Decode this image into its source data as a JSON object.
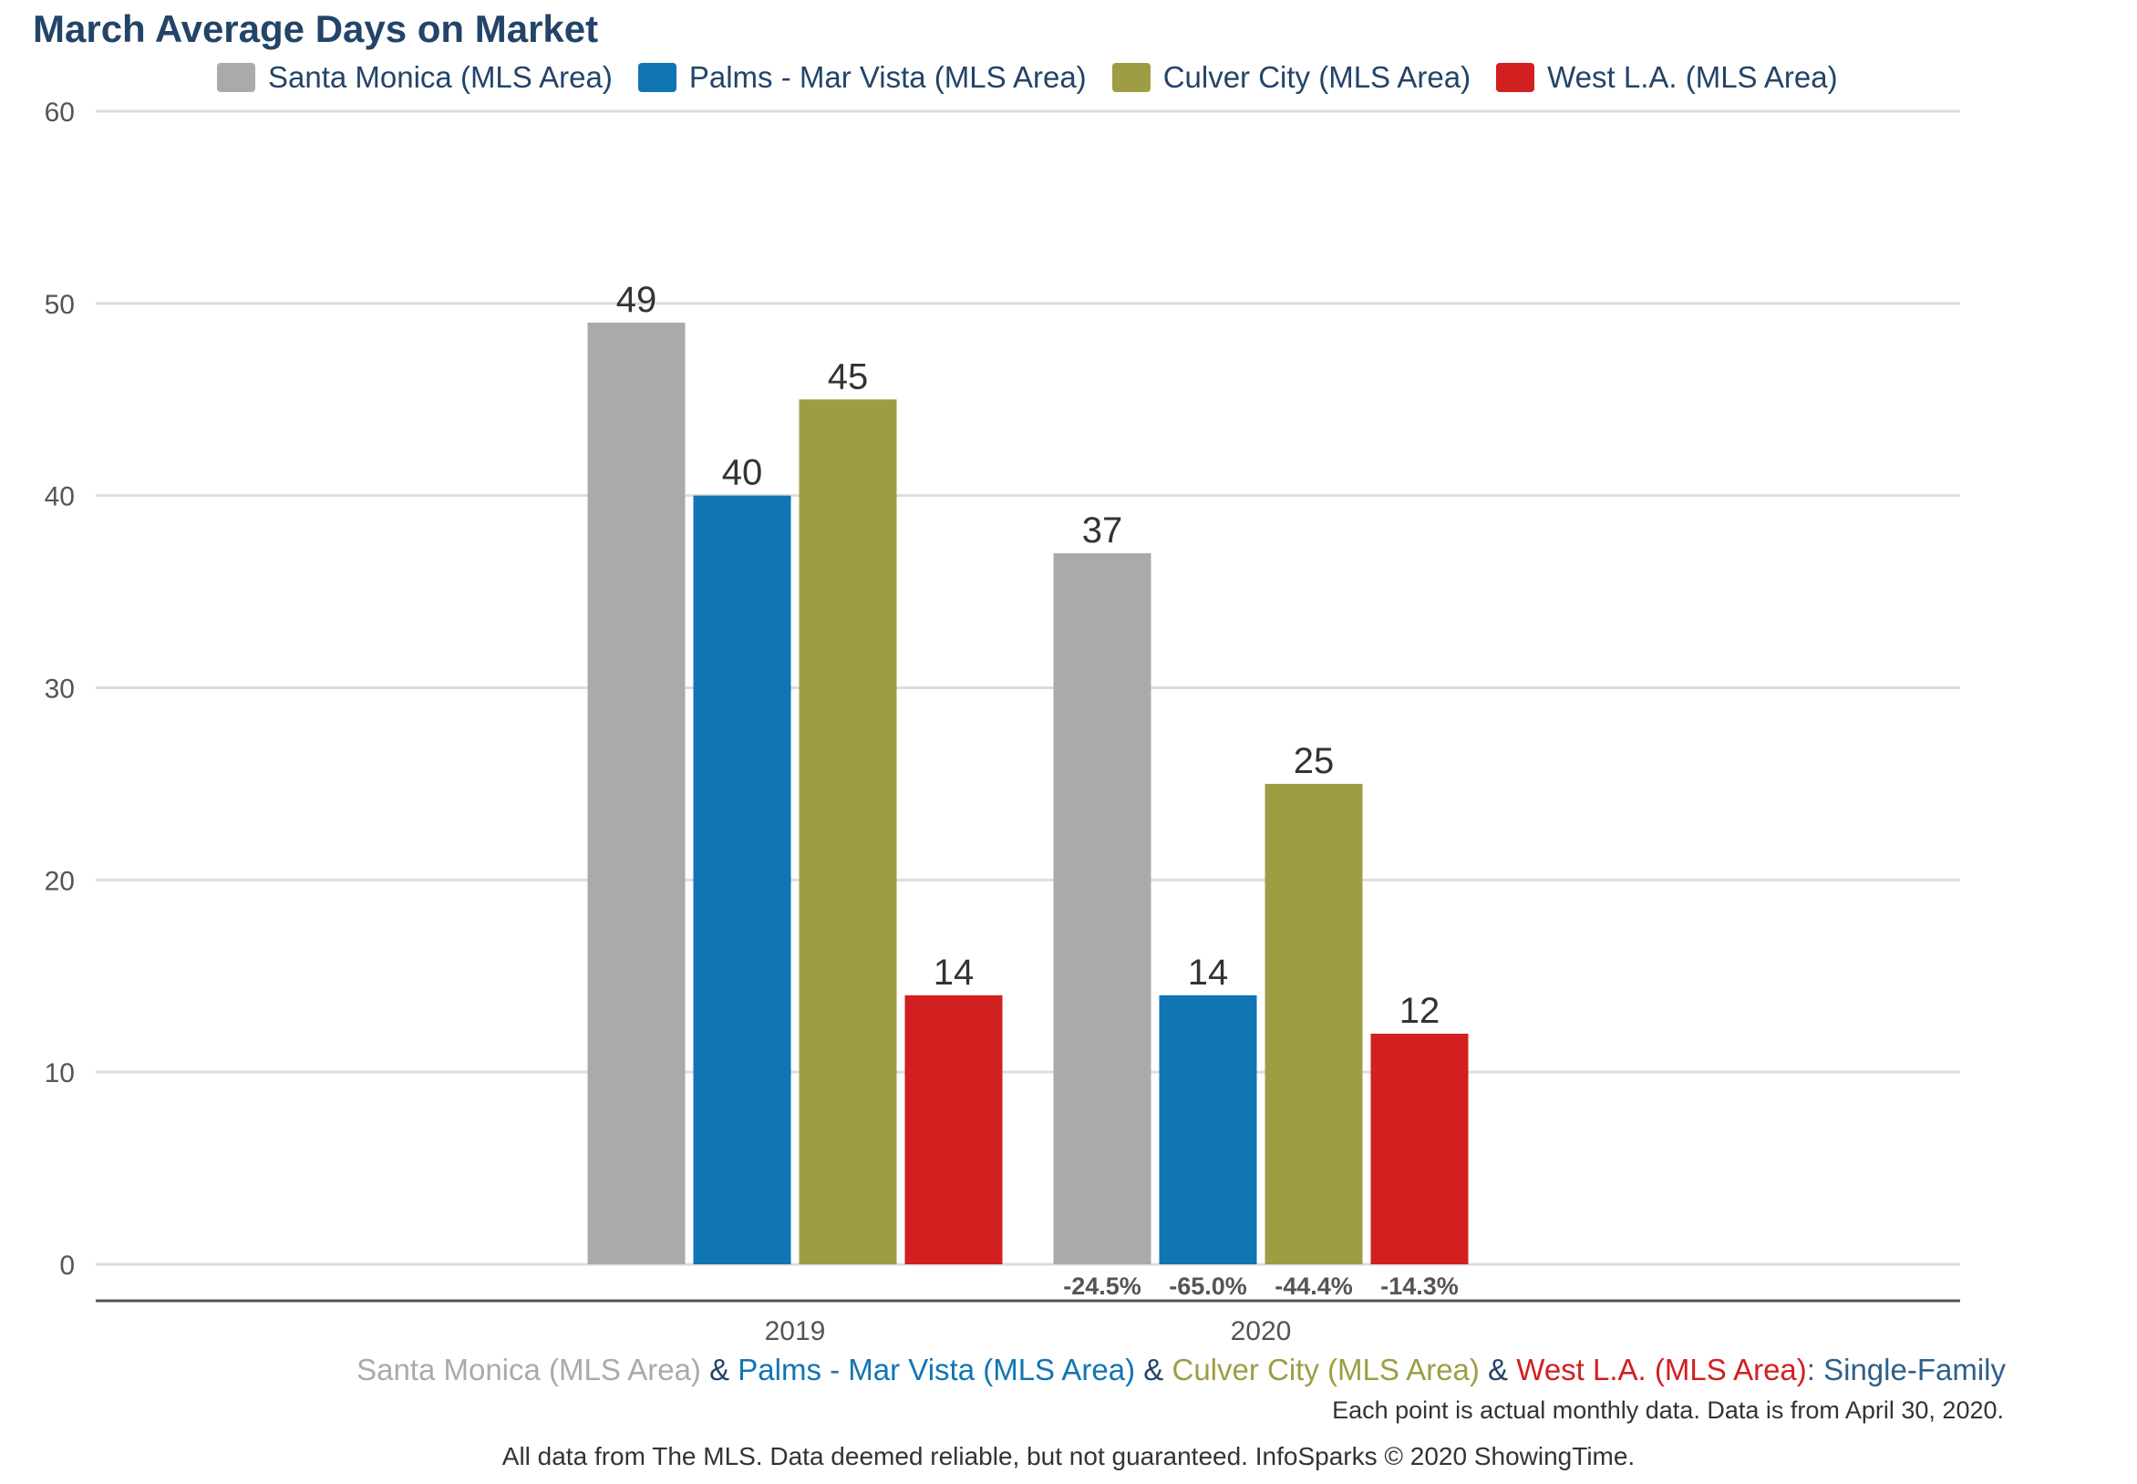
{
  "title": "March Average Days on Market",
  "colors": {
    "santa_monica": "#aaaaaa",
    "palms": "#1175b4",
    "culver": "#9e9d44",
    "westla": "#d21f1f",
    "title": "#234468",
    "grid": "#dddddd",
    "axis": "#555555"
  },
  "legend": [
    {
      "label": "Santa Monica (MLS Area)",
      "color": "#aaaaaa"
    },
    {
      "label": "Palms - Mar Vista (MLS Area)",
      "color": "#1175b4"
    },
    {
      "label": "Culver City (MLS Area)",
      "color": "#9e9d44"
    },
    {
      "label": "West L.A. (MLS Area)",
      "color": "#d21f1f"
    }
  ],
  "subtitle": {
    "parts": [
      {
        "text": "Santa Monica (MLS Area)",
        "color": "#aaaaaa"
      },
      {
        "text": " & ",
        "color": "#234468"
      },
      {
        "text": "Palms - Mar Vista (MLS Area)",
        "color": "#1175b4"
      },
      {
        "text": " & ",
        "color": "#234468"
      },
      {
        "text": "Culver City (MLS Area)",
        "color": "#9e9d44"
      },
      {
        "text": " & ",
        "color": "#234468"
      },
      {
        "text": "West L.A. (MLS Area)",
        "color": "#d21f1f"
      },
      {
        "text": ": Single-Family",
        "color": "#2f5f8a"
      }
    ]
  },
  "note": "Each point is actual monthly data. Data is from April 30, 2020.",
  "footer": "All data from The MLS. Data deemed reliable, but not guaranteed. InfoSparks © 2020 ShowingTime.",
  "chart_data": {
    "type": "bar",
    "title": "March Average Days on Market",
    "categories": [
      "2019",
      "2020"
    ],
    "ylim": [
      0,
      60
    ],
    "yticks": [
      0,
      10,
      20,
      30,
      40,
      50,
      60
    ],
    "grid": true,
    "legend_position": "top",
    "series": [
      {
        "name": "Santa Monica (MLS Area)",
        "color": "#aaaaaa",
        "values": [
          49,
          37
        ],
        "change_labels": [
          "",
          "-24.5%"
        ]
      },
      {
        "name": "Palms - Mar Vista (MLS Area)",
        "color": "#1175b4",
        "values": [
          40,
          14
        ],
        "change_labels": [
          "",
          "-65.0%"
        ]
      },
      {
        "name": "Culver City (MLS Area)",
        "color": "#9e9d44",
        "values": [
          45,
          25
        ],
        "change_labels": [
          "",
          "-44.4%"
        ]
      },
      {
        "name": "West L.A. (MLS Area)",
        "color": "#d21f1f",
        "values": [
          14,
          12
        ],
        "change_labels": [
          "",
          "-14.3%"
        ]
      }
    ]
  }
}
